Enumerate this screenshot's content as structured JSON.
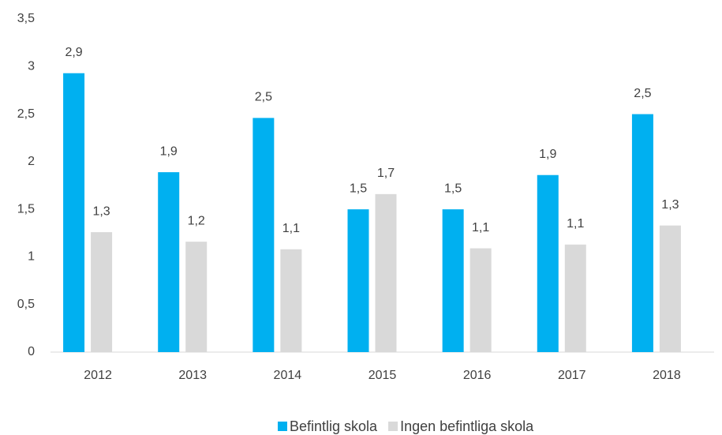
{
  "chart_data": {
    "type": "bar",
    "categories": [
      "2012",
      "2013",
      "2014",
      "2015",
      "2016",
      "2017",
      "2018"
    ],
    "series": [
      {
        "name": "Befintlig skola",
        "color": "#00b0f0",
        "values": [
          2.93,
          1.89,
          2.46,
          1.5,
          1.5,
          1.86,
          2.5
        ],
        "value_labels": [
          "2,9",
          "1,9",
          "2,5",
          "1,5",
          "1,5",
          "1,9",
          "2,5"
        ]
      },
      {
        "name": "Ingen befintliga skola",
        "color": "#d9d9d9",
        "values": [
          1.26,
          1.16,
          1.08,
          1.66,
          1.09,
          1.13,
          1.33
        ],
        "value_labels": [
          "1,3",
          "1,2",
          "1,1",
          "1,7",
          "1,1",
          "1,1",
          "1,3"
        ]
      }
    ],
    "ylim": [
      0,
      3.5
    ],
    "yticks": [
      0,
      {
        "value": 0.5,
        "label": "0,5"
      },
      1,
      {
        "value": 1.5,
        "label": "1,5"
      },
      2,
      {
        "value": 2.5,
        "label": "2,5"
      },
      3,
      {
        "value": 3.5,
        "label": "3,5"
      }
    ],
    "grid": false,
    "legend": "bottom"
  }
}
